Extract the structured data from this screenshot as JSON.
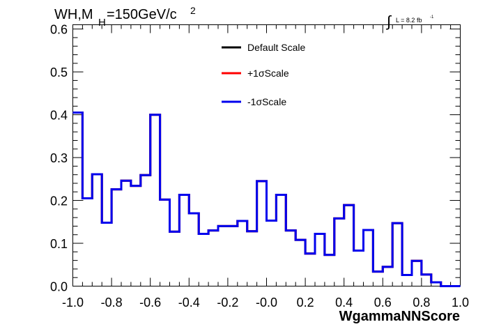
{
  "chart_data": {
    "type": "line",
    "title_parts": {
      "main1": "WH,M",
      "sub": "H",
      "main2": "=150GeV/c",
      "sup": "2"
    },
    "lumi": {
      "integral": "∫",
      "text": "L = 8.2 fb",
      "sup": "-1"
    },
    "xlabel": "WgammaNNScore",
    "ylabel": "",
    "xlim": [
      -1.0,
      1.0
    ],
    "ylim": [
      0.0,
      0.61
    ],
    "x_ticks": [
      -1.0,
      -0.8,
      -0.6,
      -0.4,
      -0.2,
      0.0,
      0.2,
      0.4,
      0.6,
      0.8,
      1.0
    ],
    "x_tick_labels": [
      "-1.0",
      "-0.8",
      "-0.6",
      "-0.4",
      "-0.2",
      "-0.0",
      "0.2",
      "0.4",
      "0.6",
      "0.8",
      "1.0"
    ],
    "y_ticks": [
      0.0,
      0.1,
      0.2,
      0.3,
      0.4,
      0.5,
      0.6
    ],
    "y_tick_labels": [
      "0.0",
      "0.1",
      "0.2",
      "0.3",
      "0.4",
      "0.5",
      "0.6"
    ],
    "legend_position": "top-center",
    "bin_edges": [
      -1.0,
      -0.95,
      -0.9,
      -0.85,
      -0.8,
      -0.75,
      -0.7,
      -0.65,
      -0.6,
      -0.55,
      -0.5,
      -0.45,
      -0.4,
      -0.35,
      -0.3,
      -0.25,
      -0.2,
      -0.15,
      -0.1,
      -0.05,
      0.0,
      0.05,
      0.1,
      0.15,
      0.2,
      0.25,
      0.3,
      0.35,
      0.4,
      0.45,
      0.5,
      0.55,
      0.6,
      0.65,
      0.7,
      0.75,
      0.8,
      0.85,
      0.9,
      0.95,
      1.0
    ],
    "series": [
      {
        "name": "Default Scale",
        "color": "#000000",
        "values": [
          0.405,
          0.205,
          0.261,
          0.148,
          0.226,
          0.246,
          0.234,
          0.259,
          0.4,
          0.202,
          0.127,
          0.213,
          0.17,
          0.122,
          0.13,
          0.14,
          0.14,
          0.152,
          0.128,
          0.245,
          0.153,
          0.213,
          0.13,
          0.108,
          0.076,
          0.122,
          0.073,
          0.158,
          0.189,
          0.083,
          0.131,
          0.034,
          0.045,
          0.147,
          0.026,
          0.059,
          0.027,
          0.009,
          0.0,
          0.0
        ]
      },
      {
        "name": "+1σScale",
        "color": "#ff0000",
        "values": [
          0.405,
          0.205,
          0.261,
          0.148,
          0.226,
          0.246,
          0.234,
          0.259,
          0.4,
          0.202,
          0.127,
          0.213,
          0.17,
          0.122,
          0.13,
          0.14,
          0.14,
          0.152,
          0.128,
          0.245,
          0.153,
          0.213,
          0.13,
          0.108,
          0.076,
          0.122,
          0.073,
          0.158,
          0.189,
          0.083,
          0.131,
          0.034,
          0.045,
          0.147,
          0.026,
          0.059,
          0.027,
          0.009,
          0.0,
          0.0
        ]
      },
      {
        "name": "-1σScale",
        "color": "#0000ee",
        "values": [
          0.405,
          0.205,
          0.261,
          0.148,
          0.226,
          0.246,
          0.234,
          0.259,
          0.4,
          0.202,
          0.127,
          0.213,
          0.17,
          0.122,
          0.13,
          0.14,
          0.14,
          0.152,
          0.128,
          0.245,
          0.153,
          0.213,
          0.13,
          0.108,
          0.076,
          0.122,
          0.073,
          0.158,
          0.189,
          0.083,
          0.131,
          0.034,
          0.045,
          0.147,
          0.026,
          0.059,
          0.027,
          0.009,
          0.0,
          0.0
        ]
      }
    ]
  }
}
